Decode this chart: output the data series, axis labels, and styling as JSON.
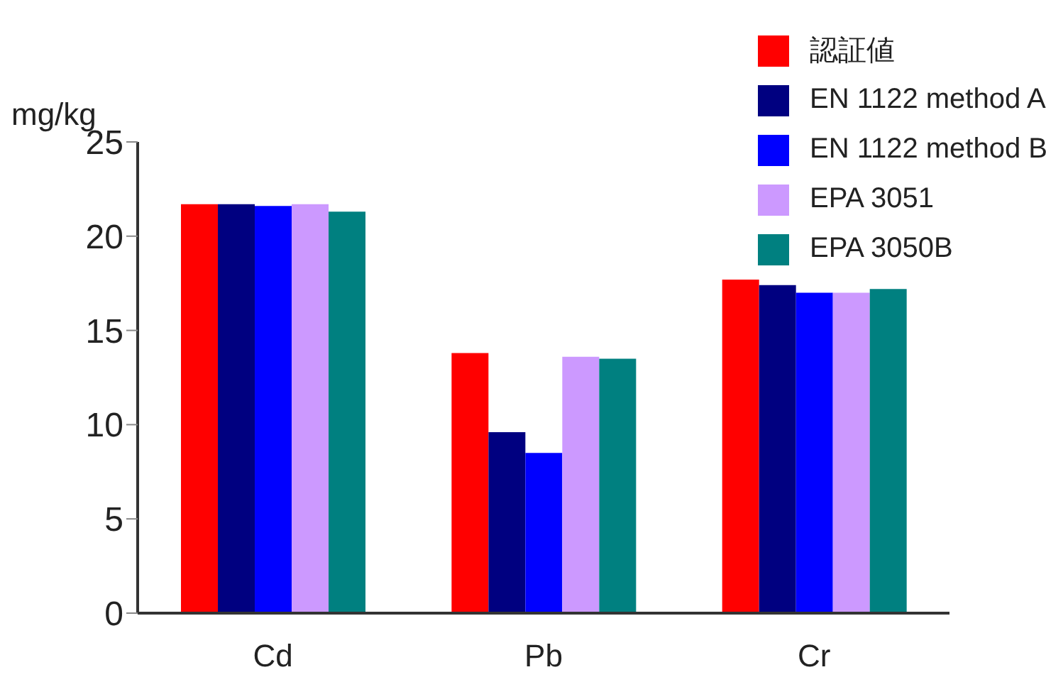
{
  "chart_data": {
    "type": "bar",
    "ylabel": "mg/kg",
    "categories": [
      "Cd",
      "Pb",
      "Cr"
    ],
    "series": [
      {
        "name": "認証値",
        "color": "#ff0000",
        "values": [
          21.7,
          13.8,
          17.7
        ]
      },
      {
        "name": "EN 1122 method A",
        "color": "#000080",
        "values": [
          21.7,
          9.6,
          17.4
        ]
      },
      {
        "name": "EN 1122 method B",
        "color": "#0000ff",
        "values": [
          21.6,
          8.5,
          17.0
        ]
      },
      {
        "name": "EPA 3051",
        "color": "#cc99ff",
        "values": [
          21.7,
          13.6,
          17.0
        ]
      },
      {
        "name": "EPA 3050B",
        "color": "#008080",
        "values": [
          21.3,
          13.5,
          17.2
        ]
      }
    ],
    "ylim": [
      0,
      25
    ],
    "yticks": [
      0,
      5,
      10,
      15,
      20,
      25
    ],
    "grid": false,
    "legend": "top right"
  }
}
